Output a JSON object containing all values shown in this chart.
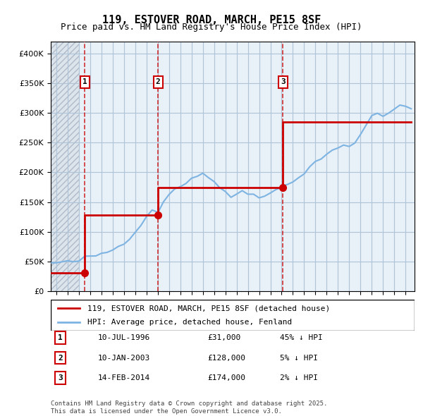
{
  "title": "119, ESTOVER ROAD, MARCH, PE15 8SF",
  "subtitle": "Price paid vs. HM Land Registry's House Price Index (HPI)",
  "legend_line1": "119, ESTOVER ROAD, MARCH, PE15 8SF (detached house)",
  "legend_line2": "HPI: Average price, detached house, Fenland",
  "footnote1": "Contains HM Land Registry data © Crown copyright and database right 2025.",
  "footnote2": "This data is licensed under the Open Government Licence v3.0.",
  "transactions": [
    {
      "num": 1,
      "date": 1996.53,
      "price": 31000,
      "label": "10-JUL-1996",
      "amount": "£31,000",
      "hpi_diff": "45% ↓ HPI"
    },
    {
      "num": 2,
      "date": 2003.03,
      "price": 128000,
      "label": "10-JAN-2003",
      "amount": "£128,000",
      "hpi_diff": "5% ↓ HPI"
    },
    {
      "num": 3,
      "date": 2014.12,
      "price": 174000,
      "label": "14-FEB-2014",
      "amount": "£174,000",
      "hpi_diff": "2% ↓ HPI"
    }
  ],
  "hpi_line_color": "#7eb4e2",
  "price_line_color": "#cc0000",
  "vline_color": "#cc0000",
  "background_hatch_color": "#d0d8e8",
  "grid_color": "#b0c4d8",
  "ylim": [
    0,
    420000
  ],
  "xlim": [
    1993.5,
    2025.8
  ],
  "hpi_data_x": [
    1993.58,
    1994.0,
    1994.5,
    1995.0,
    1995.5,
    1996.0,
    1996.53,
    1997.0,
    1997.5,
    1998.0,
    1998.5,
    1999.0,
    1999.5,
    2000.0,
    2000.5,
    2001.0,
    2001.5,
    2002.0,
    2002.5,
    2003.03,
    2003.5,
    2004.0,
    2004.5,
    2005.0,
    2005.5,
    2006.0,
    2006.5,
    2007.0,
    2007.5,
    2008.0,
    2008.5,
    2009.0,
    2009.5,
    2010.0,
    2010.5,
    2011.0,
    2011.5,
    2012.0,
    2012.5,
    2013.0,
    2013.5,
    2014.0,
    2014.12,
    2014.5,
    2015.0,
    2015.5,
    2016.0,
    2016.5,
    2017.0,
    2017.5,
    2018.0,
    2018.5,
    2019.0,
    2019.5,
    2020.0,
    2020.5,
    2021.0,
    2021.5,
    2022.0,
    2022.5,
    2023.0,
    2023.5,
    2024.0,
    2024.5,
    2025.0,
    2025.5
  ],
  "hpi_data_y": [
    47000,
    48000,
    48500,
    49000,
    50000,
    51000,
    56600,
    58000,
    60000,
    63000,
    66000,
    70000,
    75000,
    82000,
    90000,
    100000,
    112000,
    125000,
    138000,
    134700,
    148000,
    163000,
    172000,
    178000,
    182000,
    190000,
    195000,
    198000,
    192000,
    185000,
    175000,
    165000,
    158000,
    165000,
    168000,
    165000,
    163000,
    160000,
    162000,
    165000,
    170000,
    174000,
    177600,
    180000,
    186000,
    192000,
    198000,
    208000,
    218000,
    225000,
    230000,
    238000,
    242000,
    245000,
    242000,
    248000,
    265000,
    280000,
    295000,
    298000,
    295000,
    300000,
    308000,
    315000,
    310000,
    305000
  ],
  "price_data_x": [
    1993.58,
    1996.53,
    1996.53,
    2003.03,
    2003.03,
    2014.12,
    2014.12,
    2025.5
  ],
  "price_data_y": [
    31000,
    31000,
    128000,
    128000,
    174000,
    174000,
    285000,
    285000
  ]
}
